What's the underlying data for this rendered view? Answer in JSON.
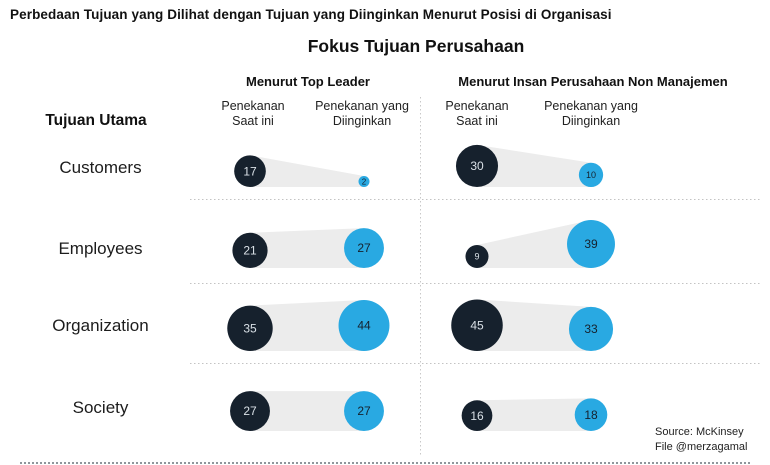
{
  "header": {
    "title": "Perbedaan Tujuan yang Dilihat dengan Tujuan yang Diinginkan Menurut Posisi di Organisasi",
    "subtitle": "Fokus Tujuan Perusahaan"
  },
  "row_header": "Tujuan Utama",
  "source": {
    "line1": "Source: McKinsey",
    "line2": "File @merzagamal"
  },
  "chart_data": {
    "type": "bubble-comparison",
    "title": "Fokus Tujuan Perusahaan",
    "categories": [
      "Customers",
      "Employees",
      "Organization",
      "Society"
    ],
    "groups": [
      {
        "label": "Menurut Top Leader",
        "columns": [
          {
            "label_lines": [
              "Penekanan",
              "Saat ini"
            ]
          },
          {
            "label_lines": [
              "Penekanan yang",
              "Diinginkan"
            ]
          }
        ],
        "series": [
          {
            "name": "Penekanan Saat ini",
            "values": [
              17,
              21,
              35,
              27
            ]
          },
          {
            "name": "Penekanan yang Diinginkan",
            "values": [
              2,
              27,
              44,
              27
            ]
          }
        ]
      },
      {
        "label": "Menurut Insan Perusahaan Non Manajemen",
        "columns": [
          {
            "label_lines": [
              "Penekanan",
              "Saat ini"
            ]
          },
          {
            "label_lines": [
              "Penekanan yang",
              "Diinginkan"
            ]
          }
        ],
        "series": [
          {
            "name": "Penekanan Saat ini",
            "values": [
              30,
              9,
              45,
              16
            ]
          },
          {
            "name": "Penekanan yang Diinginkan",
            "values": [
              10,
              39,
              33,
              18
            ]
          }
        ]
      }
    ],
    "colors": {
      "current": "#16212D",
      "desired": "#29A9E2",
      "band": "#ECECEC",
      "number_on_current": "#D9E0E6",
      "number_on_desired": "#16212D"
    },
    "sizing": "radius proportional to sqrt(value)"
  }
}
